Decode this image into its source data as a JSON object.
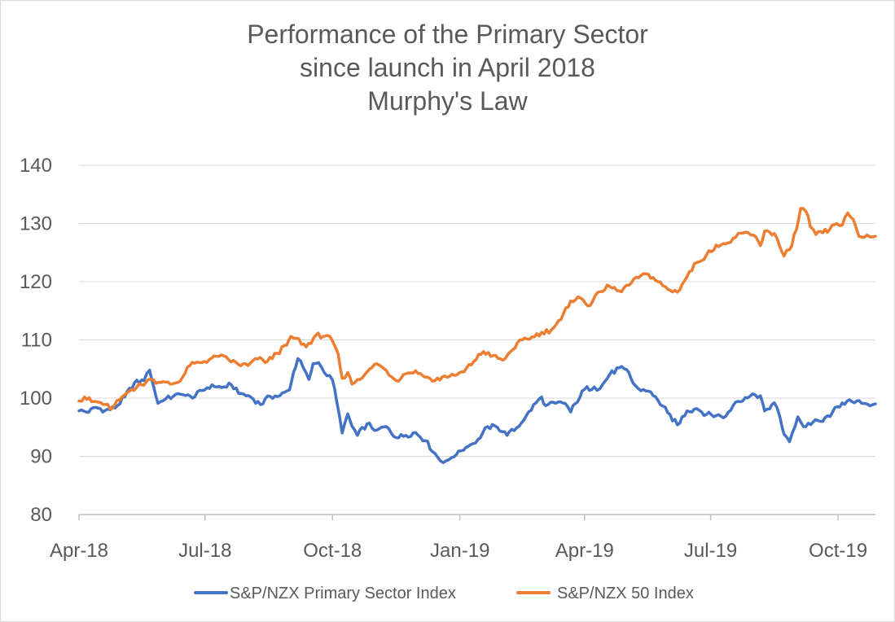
{
  "chart_data": {
    "type": "line",
    "title_lines": [
      "Performance of the Primary Sector",
      "since launch in April 2018",
      "Murphy's Law"
    ],
    "xlabel": "",
    "ylabel": "",
    "ylim": [
      80,
      140
    ],
    "yticks": [
      80,
      90,
      100,
      110,
      120,
      130,
      140
    ],
    "xlim": [
      "2018-04-01",
      "2019-10-28"
    ],
    "xticks": [
      {
        "date": "2018-04-01",
        "label": "Apr-18"
      },
      {
        "date": "2018-07-01",
        "label": "Jul-18"
      },
      {
        "date": "2018-10-01",
        "label": "Oct-18"
      },
      {
        "date": "2019-01-01",
        "label": "Jan-19"
      },
      {
        "date": "2019-04-01",
        "label": "Apr-19"
      },
      {
        "date": "2019-07-01",
        "label": "Jul-19"
      },
      {
        "date": "2019-10-01",
        "label": "Oct-19"
      }
    ],
    "grid": true,
    "legend_position": "bottom",
    "series": [
      {
        "name": "S&P/NZX Primary Sector Index",
        "color": "#4472C4",
        "points": [
          [
            "2018-04-01",
            97.8
          ],
          [
            "2018-04-08",
            97.6
          ],
          [
            "2018-04-13",
            98.4
          ],
          [
            "2018-04-20",
            97.9
          ],
          [
            "2018-04-27",
            98.3
          ],
          [
            "2018-05-04",
            100.2
          ],
          [
            "2018-05-11",
            102.6
          ],
          [
            "2018-05-18",
            103.0
          ],
          [
            "2018-05-22",
            104.8
          ],
          [
            "2018-05-25",
            101.9
          ],
          [
            "2018-05-28",
            99.1
          ],
          [
            "2018-06-01",
            99.6
          ],
          [
            "2018-06-08",
            100.3
          ],
          [
            "2018-06-15",
            100.6
          ],
          [
            "2018-06-22",
            100.0
          ],
          [
            "2018-06-29",
            101.3
          ],
          [
            "2018-07-06",
            102.3
          ],
          [
            "2018-07-13",
            101.8
          ],
          [
            "2018-07-20",
            102.3
          ],
          [
            "2018-07-27",
            100.8
          ],
          [
            "2018-08-03",
            100.2
          ],
          [
            "2018-08-10",
            98.9
          ],
          [
            "2018-08-17",
            100.3
          ],
          [
            "2018-08-24",
            100.4
          ],
          [
            "2018-08-31",
            101.4
          ],
          [
            "2018-09-03",
            104.5
          ],
          [
            "2018-09-06",
            106.8
          ],
          [
            "2018-09-10",
            105.2
          ],
          [
            "2018-09-14",
            103.2
          ],
          [
            "2018-09-17",
            105.9
          ],
          [
            "2018-09-21",
            106.1
          ],
          [
            "2018-09-25",
            104.4
          ],
          [
            "2018-10-01",
            103.1
          ],
          [
            "2018-10-04",
            99.5
          ],
          [
            "2018-10-08",
            94.0
          ],
          [
            "2018-10-12",
            97.3
          ],
          [
            "2018-10-15",
            95.2
          ],
          [
            "2018-10-19",
            93.6
          ],
          [
            "2018-10-26",
            95.6
          ],
          [
            "2018-11-02",
            94.5
          ],
          [
            "2018-11-09",
            95.1
          ],
          [
            "2018-11-16",
            93.2
          ],
          [
            "2018-11-23",
            93.6
          ],
          [
            "2018-11-30",
            94.1
          ],
          [
            "2018-12-07",
            92.7
          ],
          [
            "2018-12-14",
            90.5
          ],
          [
            "2018-12-18",
            89.2
          ],
          [
            "2018-12-24",
            89.4
          ],
          [
            "2018-12-31",
            90.9
          ],
          [
            "2019-01-07",
            91.7
          ],
          [
            "2019-01-14",
            92.9
          ],
          [
            "2019-01-21",
            95.1
          ],
          [
            "2019-01-28",
            95.0
          ],
          [
            "2019-02-04",
            93.6
          ],
          [
            "2019-02-11",
            94.9
          ],
          [
            "2019-02-18",
            97.0
          ],
          [
            "2019-02-25",
            99.2
          ],
          [
            "2019-03-01",
            100.2
          ],
          [
            "2019-03-04",
            98.7
          ],
          [
            "2019-03-11",
            99.1
          ],
          [
            "2019-03-18",
            99.1
          ],
          [
            "2019-03-22",
            97.6
          ],
          [
            "2019-03-25",
            99.0
          ],
          [
            "2019-04-01",
            101.5
          ],
          [
            "2019-04-08",
            101.9
          ],
          [
            "2019-04-12",
            101.6
          ],
          [
            "2019-04-19",
            104.0
          ],
          [
            "2019-04-26",
            105.2
          ],
          [
            "2019-05-03",
            104.4
          ],
          [
            "2019-05-06",
            102.6
          ],
          [
            "2019-05-10",
            101.6
          ],
          [
            "2019-05-17",
            101.2
          ],
          [
            "2019-05-24",
            99.6
          ],
          [
            "2019-05-31",
            97.5
          ],
          [
            "2019-06-07",
            95.4
          ],
          [
            "2019-06-14",
            97.8
          ],
          [
            "2019-06-21",
            98.2
          ],
          [
            "2019-06-28",
            97.2
          ],
          [
            "2019-07-05",
            97.0
          ],
          [
            "2019-07-12",
            96.9
          ],
          [
            "2019-07-19",
            99.3
          ],
          [
            "2019-07-26",
            100.1
          ],
          [
            "2019-08-02",
            100.6
          ],
          [
            "2019-08-06",
            100.4
          ],
          [
            "2019-08-09",
            97.8
          ],
          [
            "2019-08-16",
            99.2
          ],
          [
            "2019-08-20",
            96.8
          ],
          [
            "2019-08-23",
            93.8
          ],
          [
            "2019-08-27",
            92.5
          ],
          [
            "2019-09-02",
            96.8
          ],
          [
            "2019-09-06",
            95.1
          ],
          [
            "2019-09-13",
            95.9
          ],
          [
            "2019-09-20",
            96.0
          ],
          [
            "2019-09-27",
            97.6
          ],
          [
            "2019-10-04",
            99.2
          ],
          [
            "2019-10-11",
            99.4
          ],
          [
            "2019-10-18",
            99.1
          ],
          [
            "2019-10-28",
            99.0
          ]
        ]
      },
      {
        "name": "S&P/NZX 50 Index",
        "color": "#ED7D31",
        "points": [
          [
            "2018-04-01",
            99.5
          ],
          [
            "2018-04-05",
            100.2
          ],
          [
            "2018-04-10",
            99.4
          ],
          [
            "2018-04-15",
            99.3
          ],
          [
            "2018-04-20",
            98.9
          ],
          [
            "2018-04-25",
            98.2
          ],
          [
            "2018-05-02",
            100.2
          ],
          [
            "2018-05-09",
            101.5
          ],
          [
            "2018-05-16",
            102.3
          ],
          [
            "2018-05-23",
            103.2
          ],
          [
            "2018-05-30",
            102.7
          ],
          [
            "2018-06-06",
            102.4
          ],
          [
            "2018-06-13",
            102.9
          ],
          [
            "2018-06-20",
            105.6
          ],
          [
            "2018-06-27",
            106.1
          ],
          [
            "2018-07-04",
            106.6
          ],
          [
            "2018-07-11",
            107.2
          ],
          [
            "2018-07-18",
            106.6
          ],
          [
            "2018-07-25",
            105.8
          ],
          [
            "2018-08-01",
            105.6
          ],
          [
            "2018-08-08",
            106.7
          ],
          [
            "2018-08-15",
            106.3
          ],
          [
            "2018-08-22",
            107.7
          ],
          [
            "2018-08-29",
            109.1
          ],
          [
            "2018-09-01",
            110.6
          ],
          [
            "2018-09-05",
            110.3
          ],
          [
            "2018-09-12",
            108.8
          ],
          [
            "2018-09-19",
            110.8
          ],
          [
            "2018-09-26",
            110.7
          ],
          [
            "2018-10-01",
            109.8
          ],
          [
            "2018-10-05",
            107.7
          ],
          [
            "2018-10-08",
            103.4
          ],
          [
            "2018-10-12",
            104.4
          ],
          [
            "2018-10-15",
            102.4
          ],
          [
            "2018-10-19",
            103.2
          ],
          [
            "2018-10-26",
            104.5
          ],
          [
            "2018-11-02",
            105.9
          ],
          [
            "2018-11-09",
            104.7
          ],
          [
            "2018-11-16",
            103.0
          ],
          [
            "2018-11-23",
            104.2
          ],
          [
            "2018-11-30",
            104.7
          ],
          [
            "2018-12-07",
            103.6
          ],
          [
            "2018-12-14",
            103.0
          ],
          [
            "2018-12-21",
            103.8
          ],
          [
            "2018-12-28",
            103.9
          ],
          [
            "2019-01-04",
            104.5
          ],
          [
            "2019-01-11",
            106.3
          ],
          [
            "2019-01-18",
            108.0
          ],
          [
            "2019-01-25",
            107.3
          ],
          [
            "2019-02-01",
            106.5
          ],
          [
            "2019-02-08",
            108.3
          ],
          [
            "2019-02-15",
            110.0
          ],
          [
            "2019-02-22",
            110.5
          ],
          [
            "2019-03-01",
            111.3
          ],
          [
            "2019-03-08",
            111.7
          ],
          [
            "2019-03-15",
            113.5
          ],
          [
            "2019-03-22",
            116.7
          ],
          [
            "2019-03-29",
            117.2
          ],
          [
            "2019-04-05",
            115.9
          ],
          [
            "2019-04-12",
            118.3
          ],
          [
            "2019-04-19",
            119.2
          ],
          [
            "2019-04-26",
            118.4
          ],
          [
            "2019-05-03",
            119.4
          ],
          [
            "2019-05-10",
            120.7
          ],
          [
            "2019-05-17",
            121.3
          ],
          [
            "2019-05-24",
            120.0
          ],
          [
            "2019-05-31",
            118.7
          ],
          [
            "2019-06-07",
            118.2
          ],
          [
            "2019-06-14",
            120.9
          ],
          [
            "2019-06-21",
            123.3
          ],
          [
            "2019-06-28",
            124.6
          ],
          [
            "2019-07-05",
            126.3
          ],
          [
            "2019-07-12",
            126.5
          ],
          [
            "2019-07-19",
            127.6
          ],
          [
            "2019-07-26",
            128.5
          ],
          [
            "2019-08-01",
            128.0
          ],
          [
            "2019-08-06",
            126.2
          ],
          [
            "2019-08-09",
            128.7
          ],
          [
            "2019-08-16",
            128.3
          ],
          [
            "2019-08-20",
            126.0
          ],
          [
            "2019-08-23",
            124.4
          ],
          [
            "2019-08-27",
            125.5
          ],
          [
            "2019-09-01",
            129.0
          ],
          [
            "2019-09-04",
            132.6
          ],
          [
            "2019-09-08",
            132.0
          ],
          [
            "2019-09-11",
            129.4
          ],
          [
            "2019-09-15",
            128.1
          ],
          [
            "2019-09-20",
            128.4
          ],
          [
            "2019-09-25",
            129.0
          ],
          [
            "2019-09-30",
            130.0
          ],
          [
            "2019-10-04",
            129.7
          ],
          [
            "2019-10-08",
            131.8
          ],
          [
            "2019-10-12",
            130.7
          ],
          [
            "2019-10-16",
            127.8
          ],
          [
            "2019-10-28",
            127.8
          ]
        ]
      }
    ]
  }
}
